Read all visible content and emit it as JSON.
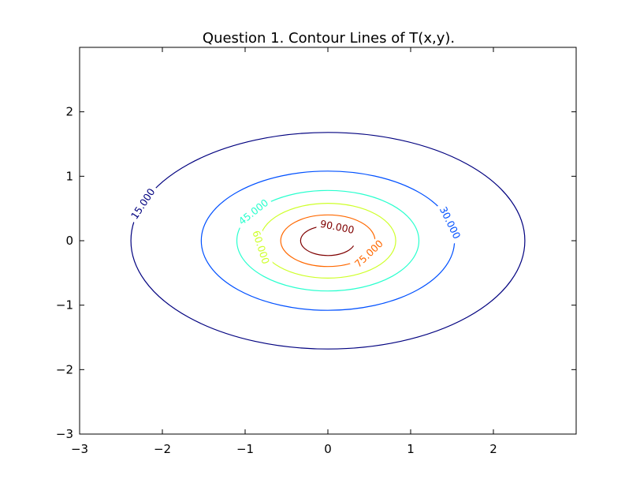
{
  "chart_data": {
    "type": "contour",
    "title": "Question 1. Contour Lines of T(x,y).",
    "xlabel": "",
    "ylabel": "",
    "xlim": [
      -3,
      3
    ],
    "ylim": [
      -3,
      3
    ],
    "xticks": [
      -3,
      -2,
      -1,
      0,
      1,
      2
    ],
    "yticks": [
      -3,
      -2,
      -1,
      0,
      1,
      2
    ],
    "xtick_labels": [
      "−3",
      "−2",
      "−1",
      "0",
      "1",
      "2"
    ],
    "ytick_labels": [
      "−3",
      "−2",
      "−1",
      "0",
      "1",
      "2"
    ],
    "grid": false,
    "levels": [
      {
        "label": "15.000",
        "value": 15,
        "color": "#00007f",
        "rx": 2.38,
        "ry": 1.68,
        "label_angle_deg": -70
      },
      {
        "label": "30.000",
        "value": 30,
        "color": "#0050ff",
        "rx": 1.53,
        "ry": 1.08,
        "label_angle_deg": 75
      },
      {
        "label": "45.000",
        "value": 45,
        "color": "#29ffce",
        "rx": 1.1,
        "ry": 0.78,
        "label_angle_deg": -55
      },
      {
        "label": "60.000",
        "value": 60,
        "color": "#ceff29",
        "rx": 0.82,
        "ry": 0.58,
        "label_angle_deg": -100
      },
      {
        "label": "75.000",
        "value": 75,
        "color": "#ff6800",
        "rx": 0.57,
        "ry": 0.4,
        "label_angle_deg": 120
      },
      {
        "label": "90.000",
        "value": 90,
        "color": "#7f0000",
        "rx": 0.33,
        "ry": 0.23,
        "label_angle_deg": 20,
        "partial": true
      }
    ]
  }
}
